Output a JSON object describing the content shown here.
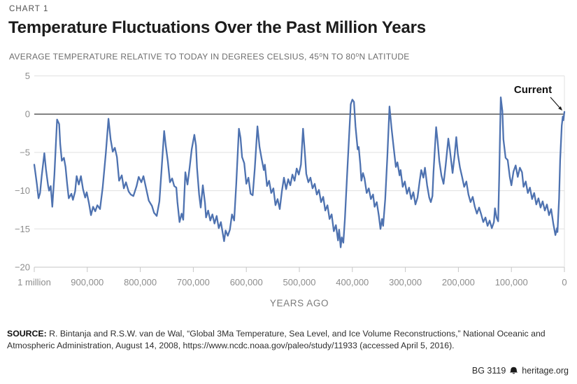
{
  "header": {
    "kicker": "CHART 1",
    "title": "Temperature Fluctuations Over the Past Million Years",
    "subtitle": "AVERAGE TEMPERATURE RELATIVE TO TODAY IN DEGREES CELSIUS, 45⁰N TO 80⁰N LATITUDE"
  },
  "chart_data": {
    "type": "line",
    "title": "Temperature Fluctuations Over the Past Million Years",
    "xlabel": "YEARS AGO",
    "ylabel": "Average temperature relative to today in degrees Celsius",
    "xlim_years_ago": [
      1000000,
      0
    ],
    "ylim": [
      -20,
      5
    ],
    "grid": "horizontal",
    "zero_line": true,
    "legend_position": "none",
    "colors": {
      "line": "#4e72b0",
      "zero_line": "#4d4d4d",
      "grid": "#e0e0e0",
      "axis": "#c6c6c6",
      "tick_text": "#8d8d8d",
      "annotation": "#1a1a1a"
    },
    "yticks": [
      {
        "value": 5,
        "label": "5"
      },
      {
        "value": 0,
        "label": "0"
      },
      {
        "value": -5,
        "label": "−5"
      },
      {
        "value": -10,
        "label": "−10"
      },
      {
        "value": -15,
        "label": "−15"
      },
      {
        "value": -20,
        "label": "−20"
      }
    ],
    "xticks": [
      {
        "value": 1000,
        "label": "1 million"
      },
      {
        "value": 900,
        "label": "900,000"
      },
      {
        "value": 800,
        "label": "800,000"
      },
      {
        "value": 700,
        "label": "700,000"
      },
      {
        "value": 600,
        "label": "600,000"
      },
      {
        "value": 500,
        "label": "500,000"
      },
      {
        "value": 400,
        "label": "400,000"
      },
      {
        "value": 300,
        "label": "300,000"
      },
      {
        "value": 200,
        "label": "200,000"
      },
      {
        "value": 100,
        "label": "100,000"
      },
      {
        "value": 0,
        "label": "0"
      }
    ],
    "annotation": {
      "label": "Current",
      "x_years_ago": 0,
      "y_value": 0
    },
    "series": [
      {
        "name": "Temperature relative to today (°C), 45°N–80°N",
        "x_unit": "thousand years ago",
        "points": [
          [
            1000,
            -6.6
          ],
          [
            998,
            -7.6
          ],
          [
            995,
            -9.2
          ],
          [
            992,
            -11.0
          ],
          [
            989,
            -10.3
          ],
          [
            986,
            -8.1
          ],
          [
            981,
            -5.1
          ],
          [
            978,
            -7.2
          ],
          [
            974,
            -9.3
          ],
          [
            972,
            -10.0
          ],
          [
            969,
            -9.4
          ],
          [
            966,
            -12.1
          ],
          [
            962,
            -7.9
          ],
          [
            959,
            -3.5
          ],
          [
            957,
            -0.7
          ],
          [
            953,
            -1.3
          ],
          [
            951,
            -3.9
          ],
          [
            948,
            -6.1
          ],
          [
            944,
            -5.7
          ],
          [
            941,
            -6.9
          ],
          [
            938,
            -9.1
          ],
          [
            935,
            -11.0
          ],
          [
            930,
            -10.4
          ],
          [
            927,
            -11.2
          ],
          [
            923,
            -10.1
          ],
          [
            920,
            -8.1
          ],
          [
            916,
            -9.2
          ],
          [
            912,
            -8.1
          ],
          [
            908,
            -9.8
          ],
          [
            904,
            -10.9
          ],
          [
            901,
            -10.2
          ],
          [
            897,
            -11.6
          ],
          [
            893,
            -13.2
          ],
          [
            889,
            -12.1
          ],
          [
            885,
            -12.7
          ],
          [
            881,
            -11.9
          ],
          [
            876,
            -12.4
          ],
          [
            871,
            -9.6
          ],
          [
            865,
            -5.1
          ],
          [
            860,
            -0.6
          ],
          [
            856,
            -3.3
          ],
          [
            852,
            -4.9
          ],
          [
            848,
            -4.4
          ],
          [
            844,
            -5.6
          ],
          [
            840,
            -8.7
          ],
          [
            835,
            -8.0
          ],
          [
            831,
            -9.7
          ],
          [
            827,
            -8.9
          ],
          [
            822,
            -10.1
          ],
          [
            818,
            -10.5
          ],
          [
            813,
            -10.7
          ],
          [
            807,
            -9.4
          ],
          [
            803,
            -8.2
          ],
          [
            798,
            -8.9
          ],
          [
            794,
            -8.1
          ],
          [
            789,
            -9.7
          ],
          [
            784,
            -11.3
          ],
          [
            778,
            -12.0
          ],
          [
            774,
            -12.9
          ],
          [
            769,
            -13.3
          ],
          [
            764,
            -11.4
          ],
          [
            760,
            -7.4
          ],
          [
            755,
            -2.2
          ],
          [
            752,
            -4.1
          ],
          [
            748,
            -6.2
          ],
          [
            744,
            -8.9
          ],
          [
            740,
            -8.4
          ],
          [
            736,
            -9.4
          ],
          [
            732,
            -9.6
          ],
          [
            730,
            -11.5
          ],
          [
            726,
            -14.1
          ],
          [
            722,
            -13.0
          ],
          [
            719,
            -13.8
          ],
          [
            715,
            -7.6
          ],
          [
            711,
            -9.2
          ],
          [
            707,
            -7.0
          ],
          [
            703,
            -4.6
          ],
          [
            698,
            -2.7
          ],
          [
            695,
            -4.1
          ],
          [
            693,
            -7.0
          ],
          [
            689,
            -10.5
          ],
          [
            686,
            -12.2
          ],
          [
            682,
            -9.3
          ],
          [
            678,
            -11.6
          ],
          [
            676,
            -13.5
          ],
          [
            672,
            -12.6
          ],
          [
            668,
            -13.9
          ],
          [
            664,
            -13.1
          ],
          [
            660,
            -14.3
          ],
          [
            656,
            -13.3
          ],
          [
            652,
            -14.9
          ],
          [
            648,
            -14.1
          ],
          [
            642,
            -16.6
          ],
          [
            639,
            -15.2
          ],
          [
            635,
            -15.9
          ],
          [
            631,
            -15.1
          ],
          [
            627,
            -13.1
          ],
          [
            623,
            -13.9
          ],
          [
            619,
            -9.1
          ],
          [
            614,
            -1.9
          ],
          [
            611,
            -3.1
          ],
          [
            608,
            -5.6
          ],
          [
            604,
            -6.4
          ],
          [
            600,
            -9.1
          ],
          [
            596,
            -8.3
          ],
          [
            592,
            -10.4
          ],
          [
            588,
            -10.6
          ],
          [
            584,
            -7.1
          ],
          [
            579,
            -1.6
          ],
          [
            575,
            -4.3
          ],
          [
            571,
            -5.9
          ],
          [
            567,
            -7.3
          ],
          [
            565,
            -6.6
          ],
          [
            561,
            -9.4
          ],
          [
            557,
            -8.7
          ],
          [
            553,
            -10.3
          ],
          [
            549,
            -9.7
          ],
          [
            545,
            -11.9
          ],
          [
            541,
            -11.1
          ],
          [
            537,
            -12.4
          ],
          [
            533,
            -10.1
          ],
          [
            529,
            -8.3
          ],
          [
            525,
            -9.8
          ],
          [
            521,
            -8.5
          ],
          [
            517,
            -9.3
          ],
          [
            513,
            -7.9
          ],
          [
            509,
            -8.7
          ],
          [
            505,
            -7.1
          ],
          [
            501,
            -7.9
          ],
          [
            497,
            -6.6
          ],
          [
            493,
            -1.9
          ],
          [
            489,
            -5.6
          ],
          [
            487,
            -7.8
          ],
          [
            483,
            -8.9
          ],
          [
            479,
            -8.3
          ],
          [
            475,
            -9.7
          ],
          [
            471,
            -9.1
          ],
          [
            467,
            -10.5
          ],
          [
            463,
            -9.9
          ],
          [
            459,
            -11.5
          ],
          [
            455,
            -10.8
          ],
          [
            451,
            -12.6
          ],
          [
            447,
            -11.9
          ],
          [
            443,
            -13.7
          ],
          [
            439,
            -13.1
          ],
          [
            435,
            -15.3
          ],
          [
            431,
            -14.5
          ],
          [
            427,
            -16.5
          ],
          [
            425,
            -15.1
          ],
          [
            422,
            -17.4
          ],
          [
            420,
            -16.1
          ],
          [
            417,
            -16.8
          ],
          [
            414,
            -13.6
          ],
          [
            410,
            -8.1
          ],
          [
            406,
            -2.6
          ],
          [
            403,
            1.3
          ],
          [
            400,
            1.9
          ],
          [
            397,
            1.6
          ],
          [
            394,
            -1.6
          ],
          [
            390,
            -4.6
          ],
          [
            388,
            -4.3
          ],
          [
            385,
            -6.6
          ],
          [
            383,
            -8.7
          ],
          [
            380,
            -7.7
          ],
          [
            377,
            -8.4
          ],
          [
            373,
            -10.3
          ],
          [
            369,
            -9.7
          ],
          [
            365,
            -11.1
          ],
          [
            361,
            -10.5
          ],
          [
            358,
            -12.1
          ],
          [
            354,
            -11.5
          ],
          [
            350,
            -13.3
          ],
          [
            347,
            -15.0
          ],
          [
            344,
            -13.7
          ],
          [
            342,
            -14.6
          ],
          [
            338,
            -11.1
          ],
          [
            334,
            -5.6
          ],
          [
            330,
            1.0
          ],
          [
            326,
            -1.9
          ],
          [
            322,
            -4.4
          ],
          [
            318,
            -6.9
          ],
          [
            315,
            -6.3
          ],
          [
            311,
            -8.0
          ],
          [
            309,
            -7.3
          ],
          [
            305,
            -9.5
          ],
          [
            301,
            -8.8
          ],
          [
            297,
            -10.4
          ],
          [
            293,
            -9.6
          ],
          [
            289,
            -11.1
          ],
          [
            285,
            -10.2
          ],
          [
            281,
            -11.8
          ],
          [
            277,
            -10.9
          ],
          [
            273,
            -8.7
          ],
          [
            270,
            -7.3
          ],
          [
            266,
            -8.3
          ],
          [
            263,
            -7.0
          ],
          [
            259,
            -9.3
          ],
          [
            255,
            -10.9
          ],
          [
            252,
            -11.5
          ],
          [
            249,
            -10.7
          ],
          [
            247,
            -7.6
          ],
          [
            242,
            -1.7
          ],
          [
            239,
            -3.6
          ],
          [
            236,
            -6.1
          ],
          [
            232,
            -8.0
          ],
          [
            228,
            -9.1
          ],
          [
            224,
            -6.7
          ],
          [
            219,
            -3.2
          ],
          [
            216,
            -4.7
          ],
          [
            211,
            -7.7
          ],
          [
            207,
            -5.3
          ],
          [
            204,
            -3.0
          ],
          [
            201,
            -5.2
          ],
          [
            197,
            -7.0
          ],
          [
            193,
            -8.2
          ],
          [
            189,
            -9.5
          ],
          [
            185,
            -8.8
          ],
          [
            181,
            -10.5
          ],
          [
            177,
            -11.5
          ],
          [
            173,
            -10.8
          ],
          [
            169,
            -12.1
          ],
          [
            165,
            -13.0
          ],
          [
            161,
            -12.2
          ],
          [
            157,
            -13.1
          ],
          [
            153,
            -14.1
          ],
          [
            149,
            -13.5
          ],
          [
            145,
            -14.6
          ],
          [
            141,
            -13.9
          ],
          [
            137,
            -14.9
          ],
          [
            133,
            -14.1
          ],
          [
            131,
            -12.3
          ],
          [
            128,
            -13.5
          ],
          [
            125,
            -14.0
          ],
          [
            123,
            -8.0
          ],
          [
            120,
            2.2
          ],
          [
            117,
            0.4
          ],
          [
            115,
            -3.3
          ],
          [
            111,
            -5.7
          ],
          [
            107,
            -6.0
          ],
          [
            103,
            -8.2
          ],
          [
            100,
            -9.3
          ],
          [
            96,
            -7.5
          ],
          [
            92,
            -6.7
          ],
          [
            88,
            -8.2
          ],
          [
            84,
            -7.0
          ],
          [
            80,
            -7.6
          ],
          [
            77,
            -9.5
          ],
          [
            73,
            -8.8
          ],
          [
            69,
            -10.3
          ],
          [
            65,
            -9.6
          ],
          [
            61,
            -11.1
          ],
          [
            57,
            -10.3
          ],
          [
            53,
            -11.8
          ],
          [
            49,
            -11.0
          ],
          [
            45,
            -12.2
          ],
          [
            41,
            -11.4
          ],
          [
            37,
            -12.6
          ],
          [
            33,
            -11.8
          ],
          [
            29,
            -13.2
          ],
          [
            25,
            -12.4
          ],
          [
            21,
            -14.3
          ],
          [
            17,
            -15.8
          ],
          [
            14,
            -14.9
          ],
          [
            13,
            -15.4
          ],
          [
            10,
            -11.0
          ],
          [
            8,
            -6.0
          ],
          [
            5,
            -1.5
          ],
          [
            3,
            -0.3
          ],
          [
            2,
            -0.8
          ],
          [
            0,
            0.3
          ]
        ]
      }
    ]
  },
  "footer": {
    "source_label": "SOURCE:",
    "source_text": " R. Bintanja and R.S.W. van de Wal, “Global 3Ma Temperature, Sea Level, and Ice Volume Reconstructions,” National Oceanic and Atmospheric Administration, August 14, 2008, https://www.ncdc.noaa.gov/paleo/study/11933 (accessed April 5, 2016).",
    "report_id": "BG 3119",
    "brand": "heritage.org",
    "bell_icon": "liberty-bell-icon"
  }
}
